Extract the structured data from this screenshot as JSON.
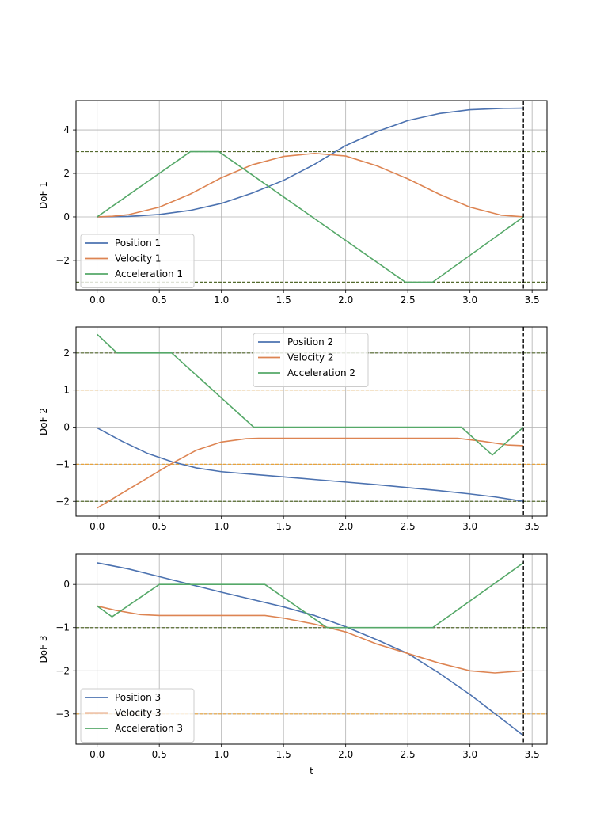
{
  "chart_data": [
    {
      "type": "line",
      "ylabel": "DoF 1",
      "xlabel": "",
      "xlim": [
        -0.17,
        3.62
      ],
      "ylim": [
        -3.35,
        5.35
      ],
      "xticks": [
        0.0,
        0.5,
        1.0,
        1.5,
        2.0,
        2.5,
        3.0,
        3.5
      ],
      "xtick_labels": [
        "0.0",
        "0.5",
        "1.0",
        "1.5",
        "2.0",
        "2.5",
        "3.0",
        "3.5"
      ],
      "yticks": [
        -2,
        0,
        2,
        4
      ],
      "ytick_labels": [
        "−2",
        "0",
        "2",
        "4"
      ],
      "grid": true,
      "legend_position": "bottom-left",
      "series": [
        {
          "name": "Position 1",
          "color": "#4c72b0",
          "x": [
            0,
            0.25,
            0.5,
            0.75,
            1.0,
            1.25,
            1.5,
            1.75,
            2.0,
            2.25,
            2.5,
            2.75,
            3.0,
            3.25,
            3.43
          ],
          "y": [
            0,
            0.02,
            0.11,
            0.3,
            0.62,
            1.1,
            1.68,
            2.42,
            3.28,
            3.92,
            4.43,
            4.75,
            4.93,
            4.99,
            5.0
          ]
        },
        {
          "name": "Velocity 1",
          "color": "#dd8452",
          "x": [
            0,
            0.125,
            0.25,
            0.5,
            0.75,
            1.0,
            1.25,
            1.5,
            1.75,
            2.0,
            2.25,
            2.5,
            2.75,
            3.0,
            3.25,
            3.43
          ],
          "y": [
            0,
            0.03,
            0.1,
            0.45,
            1.05,
            1.8,
            2.4,
            2.78,
            2.92,
            2.8,
            2.35,
            1.75,
            1.05,
            0.45,
            0.08,
            0
          ]
        },
        {
          "name": "Acceleration 1",
          "color": "#55a868",
          "x": [
            0,
            0.75,
            0.98,
            2.48,
            2.7,
            3.43
          ],
          "y": [
            0,
            3,
            3,
            -3,
            -3,
            0
          ]
        }
      ],
      "hlines": [
        {
          "y": 3,
          "color": "#556b2f",
          "style": "dashed"
        },
        {
          "y": -3,
          "color": "#556b2f",
          "style": "dashed"
        }
      ],
      "vline": {
        "x": 3.43,
        "color": "#000000",
        "style": "dashed"
      }
    },
    {
      "type": "line",
      "ylabel": "DoF 2",
      "xlabel": "",
      "xlim": [
        -0.17,
        3.62
      ],
      "ylim": [
        -2.4,
        2.7
      ],
      "xticks": [
        0.0,
        0.5,
        1.0,
        1.5,
        2.0,
        2.5,
        3.0,
        3.5
      ],
      "xtick_labels": [
        "0.0",
        "0.5",
        "1.0",
        "1.5",
        "2.0",
        "2.5",
        "3.0",
        "3.5"
      ],
      "yticks": [
        -2,
        -1,
        0,
        1,
        2
      ],
      "ytick_labels": [
        "−2",
        "−1",
        "0",
        "1",
        "2"
      ],
      "grid": true,
      "legend_position": "top-center",
      "series": [
        {
          "name": "Position 2",
          "color": "#4c72b0",
          "x": [
            0,
            0.2,
            0.4,
            0.6,
            0.8,
            1.0,
            1.25,
            1.5,
            1.75,
            2.0,
            2.25,
            2.5,
            2.75,
            3.0,
            3.2,
            3.43
          ],
          "y": [
            -0.02,
            -0.38,
            -0.7,
            -0.93,
            -1.1,
            -1.2,
            -1.27,
            -1.34,
            -1.41,
            -1.48,
            -1.55,
            -1.63,
            -1.71,
            -1.8,
            -1.88,
            -2.0
          ]
        },
        {
          "name": "Velocity 2",
          "color": "#dd8452",
          "x": [
            0,
            0.2,
            0.4,
            0.6,
            0.8,
            1.0,
            1.2,
            1.3,
            2.0,
            2.9,
            3.1,
            3.3,
            3.43
          ],
          "y": [
            -2.18,
            -1.78,
            -1.38,
            -0.98,
            -0.62,
            -0.4,
            -0.31,
            -0.3,
            -0.3,
            -0.3,
            -0.38,
            -0.48,
            -0.5
          ]
        },
        {
          "name": "Acceleration 2",
          "color": "#55a868",
          "x": [
            0,
            0.16,
            0.6,
            1.26,
            2.93,
            3.18,
            3.43
          ],
          "y": [
            2.5,
            2.0,
            2.0,
            0.0,
            0.0,
            -0.75,
            0.0
          ]
        }
      ],
      "hlines": [
        {
          "y": 2,
          "color": "#556b2f",
          "style": "dashed"
        },
        {
          "y": -2,
          "color": "#556b2f",
          "style": "dashed"
        },
        {
          "y": 1,
          "color": "#e8a33c",
          "style": "dashed"
        },
        {
          "y": -1,
          "color": "#e8a33c",
          "style": "dashed"
        }
      ],
      "vline": {
        "x": 3.43,
        "color": "#000000",
        "style": "dashed"
      }
    },
    {
      "type": "line",
      "ylabel": "DoF 3",
      "xlabel": "t",
      "xlim": [
        -0.17,
        3.62
      ],
      "ylim": [
        -3.7,
        0.7
      ],
      "xticks": [
        0.0,
        0.5,
        1.0,
        1.5,
        2.0,
        2.5,
        3.0,
        3.5
      ],
      "xtick_labels": [
        "0.0",
        "0.5",
        "1.0",
        "1.5",
        "2.0",
        "2.5",
        "3.0",
        "3.5"
      ],
      "yticks": [
        -3,
        -2,
        -1,
        0
      ],
      "ytick_labels": [
        "−3",
        "−2",
        "−1",
        "0"
      ],
      "grid": true,
      "legend_position": "bottom-left",
      "series": [
        {
          "name": "Position 3",
          "color": "#4c72b0",
          "x": [
            0,
            0.25,
            0.5,
            0.75,
            1.0,
            1.25,
            1.5,
            1.75,
            2.0,
            2.25,
            2.5,
            2.75,
            3.0,
            3.25,
            3.43
          ],
          "y": [
            0.5,
            0.36,
            0.18,
            0.0,
            -0.18,
            -0.35,
            -0.52,
            -0.72,
            -0.98,
            -1.28,
            -1.6,
            -2.05,
            -2.55,
            -3.1,
            -3.5
          ]
        },
        {
          "name": "Velocity 3",
          "color": "#dd8452",
          "x": [
            0,
            0.15,
            0.35,
            0.5,
            1.0,
            1.35,
            1.5,
            1.75,
            2.0,
            2.25,
            2.5,
            2.75,
            3.0,
            3.2,
            3.43
          ],
          "y": [
            -0.5,
            -0.6,
            -0.7,
            -0.72,
            -0.72,
            -0.72,
            -0.78,
            -0.92,
            -1.1,
            -1.38,
            -1.6,
            -1.82,
            -2.0,
            -2.05,
            -2.0
          ]
        },
        {
          "name": "Acceleration 3",
          "color": "#55a868",
          "x": [
            0,
            0.12,
            0.5,
            1.35,
            1.85,
            2.7,
            3.43
          ],
          "y": [
            -0.5,
            -0.75,
            0.0,
            0.0,
            -1.0,
            -1.0,
            0.5
          ]
        }
      ],
      "hlines": [
        {
          "y": -1,
          "color": "#556b2f",
          "style": "dashed"
        },
        {
          "y": -3,
          "color": "#e8a33c",
          "style": "dashed"
        }
      ],
      "vline": {
        "x": 3.43,
        "color": "#000000",
        "style": "dashed"
      }
    }
  ]
}
